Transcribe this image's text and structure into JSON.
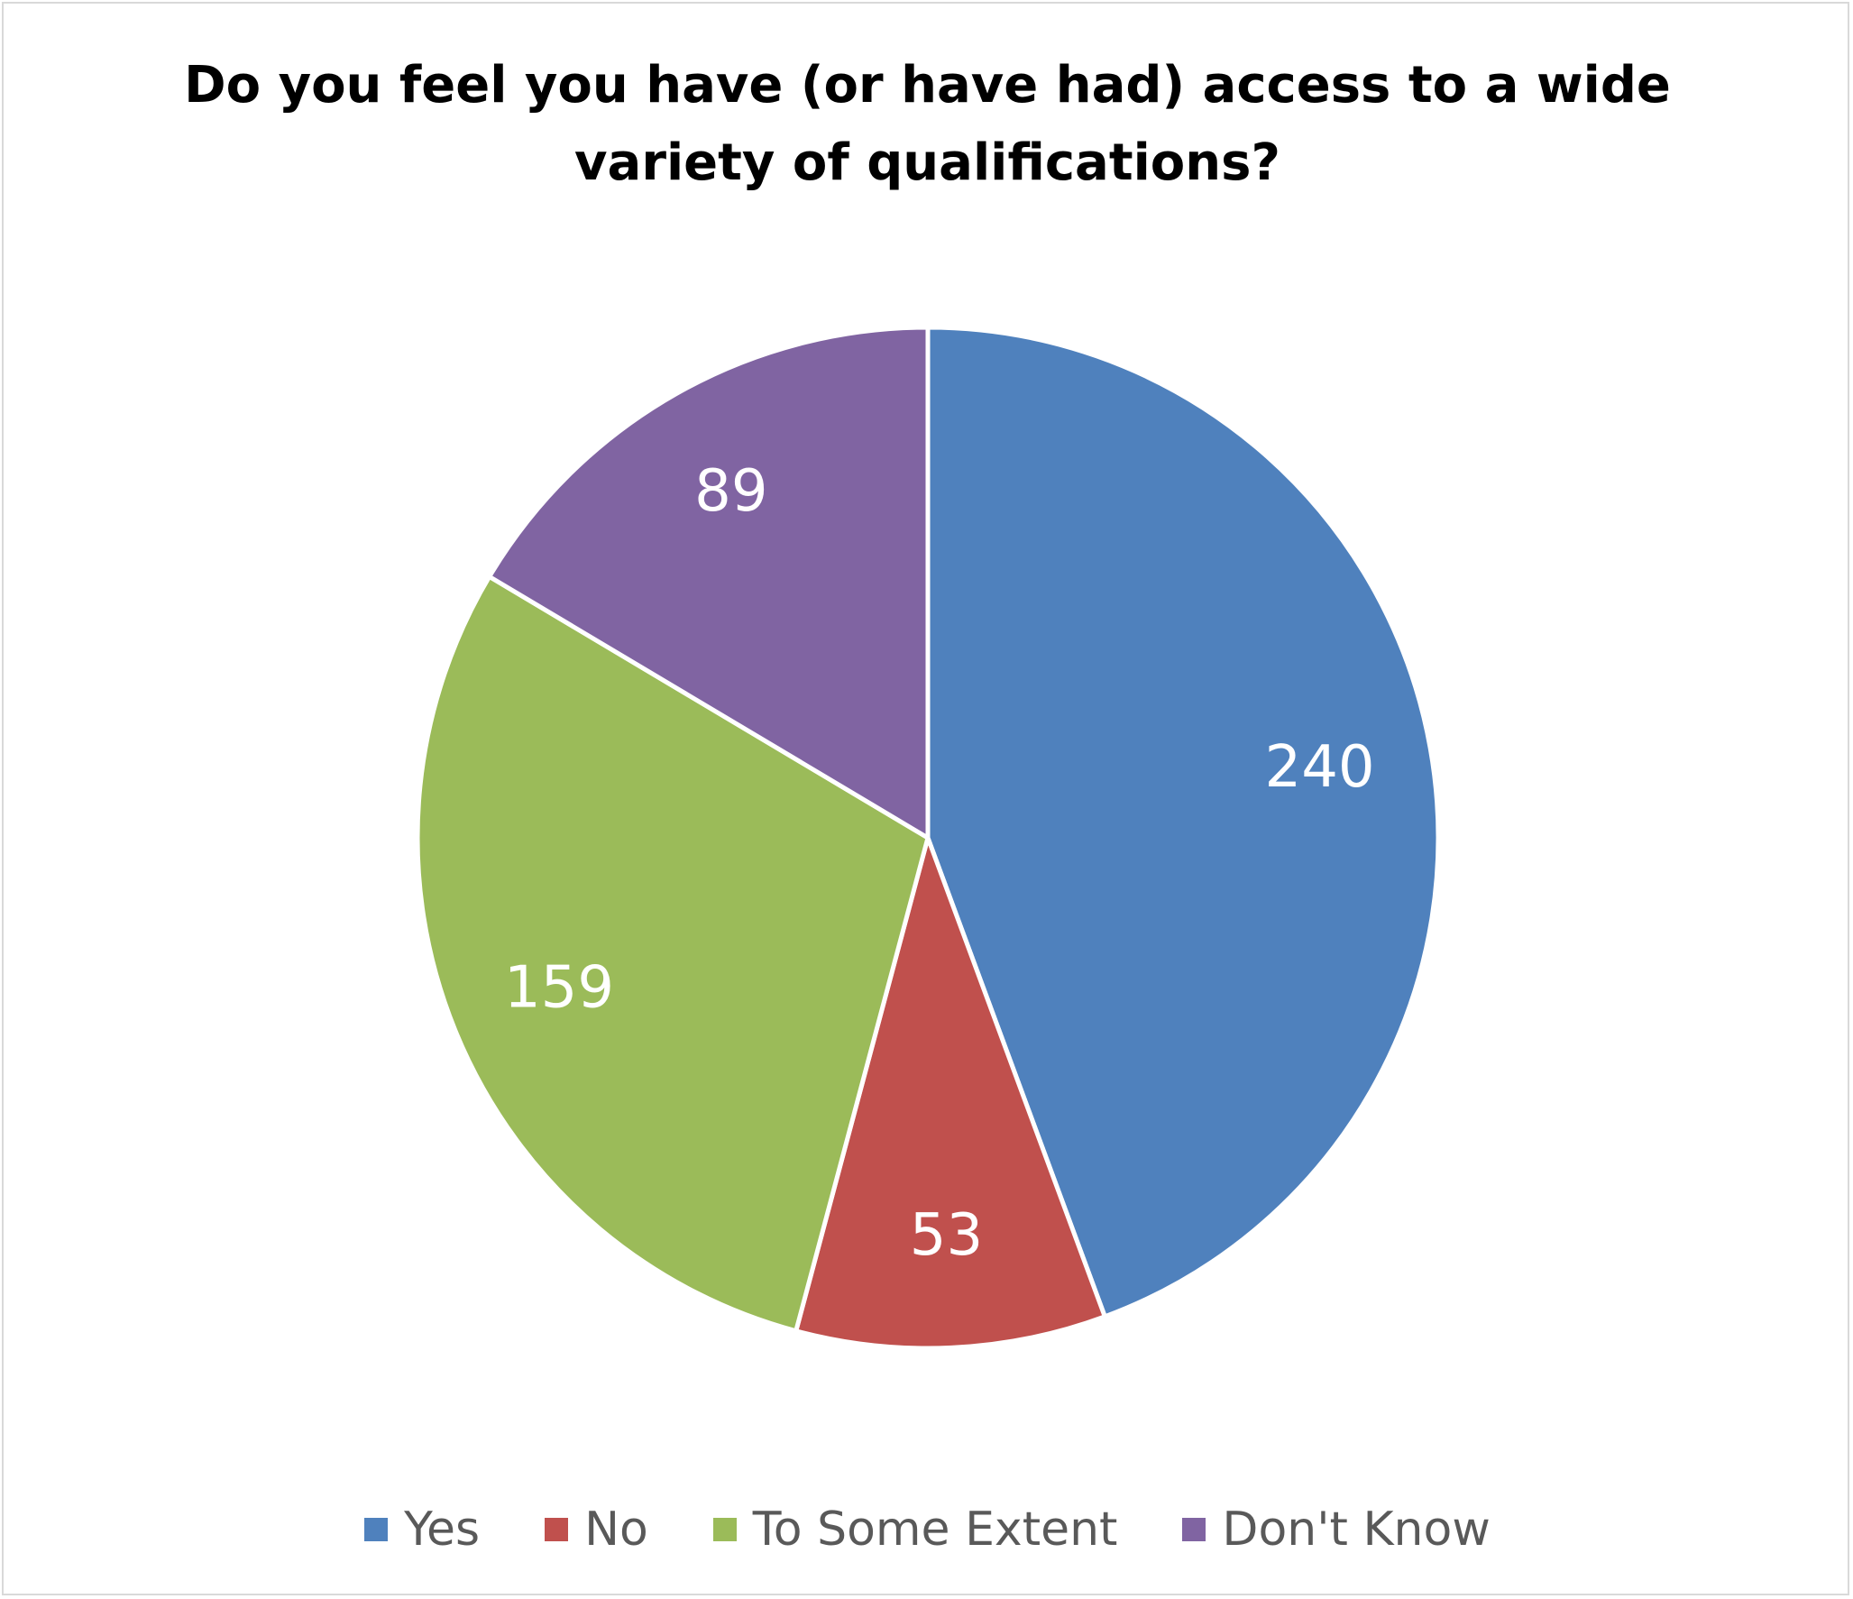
{
  "chart_data": {
    "type": "pie",
    "title": "Do you feel you have (or have had) access to a wide variety of qualifications?",
    "title_lines": [
      "Do you feel you have (or have had) access to a wide",
      "variety of qualifications?"
    ],
    "categories": [
      "Yes",
      "No",
      "To Some Extent",
      "Don't Know"
    ],
    "values": [
      240,
      53,
      159,
      89
    ],
    "colors": [
      "#4F81BD",
      "#C0504D",
      "#9BBB59",
      "#8064A2"
    ],
    "data_labels": [
      "240",
      "53",
      "159",
      "89"
    ],
    "legend_position": "bottom",
    "start_angle": "12 o'clock",
    "direction": "clockwise"
  }
}
